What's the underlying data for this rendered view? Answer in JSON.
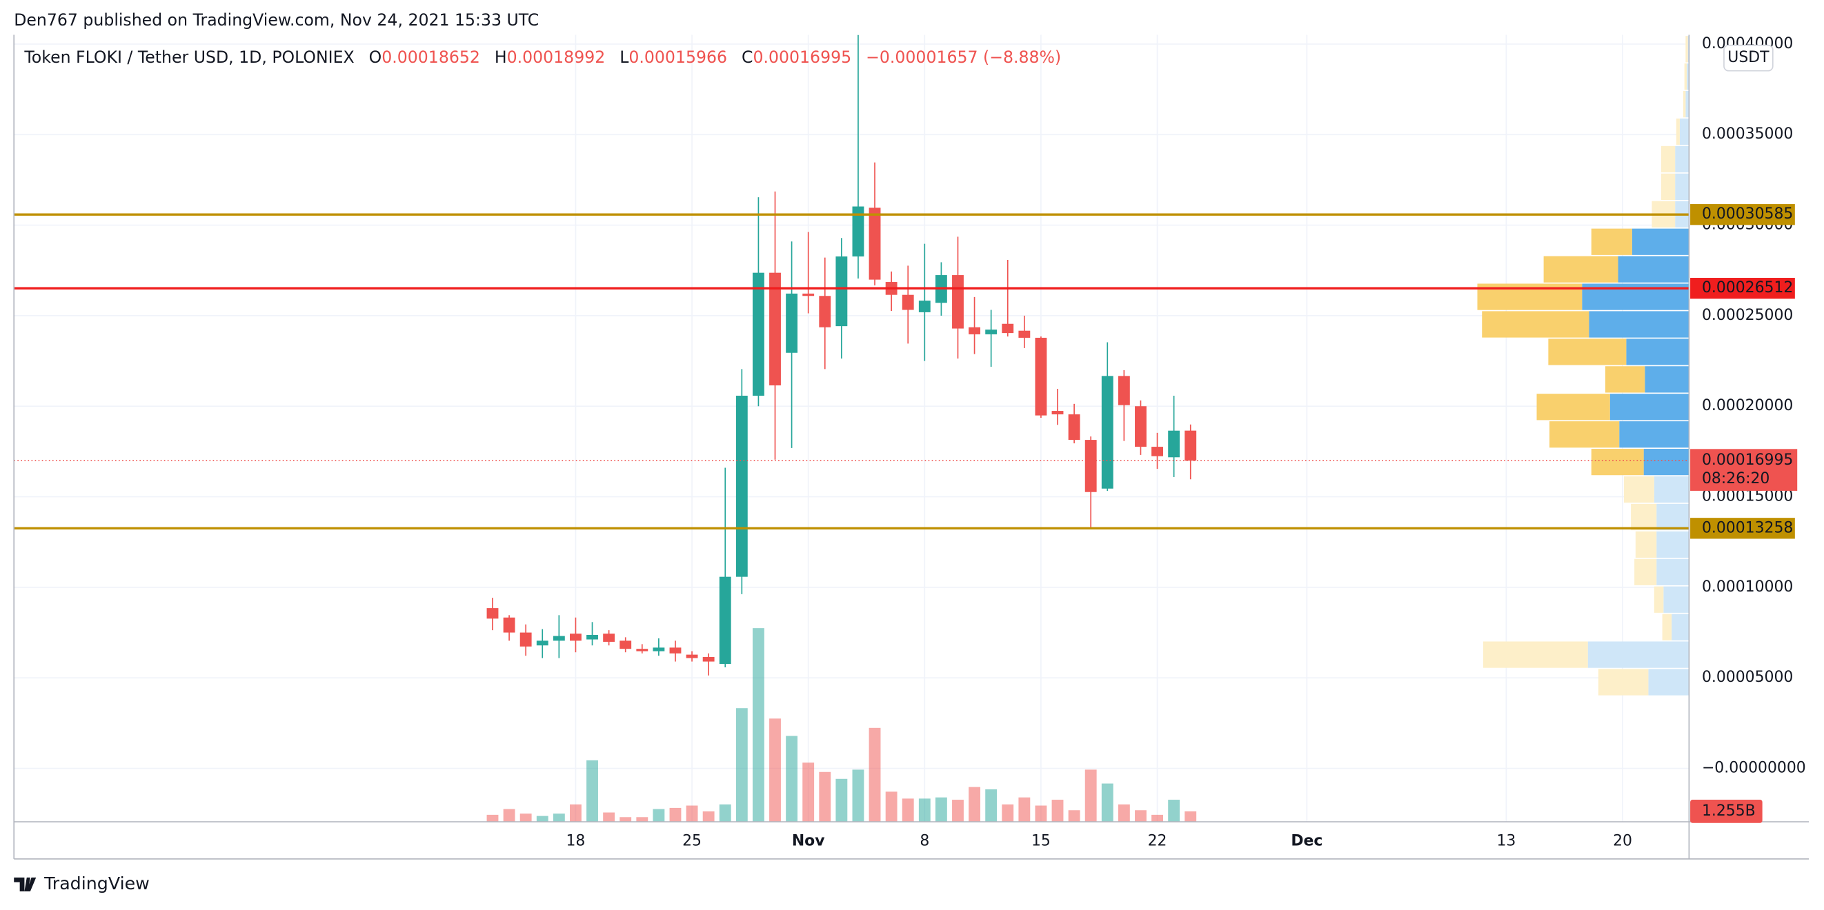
{
  "published": "Den767 published on TradingView.com, Nov 24, 2021 15:33 UTC",
  "chart_data": {
    "type": "candlestick",
    "title": "Token FLOKI / Tether USD, 1D, POLONIEX",
    "header_labels": [
      "O",
      "H",
      "L",
      "C"
    ],
    "change": "−0.00001657 (−8.88%)",
    "currency": "USDT",
    "x": [
      0,
      1,
      2,
      3,
      4,
      5,
      6,
      7,
      8,
      9,
      10,
      11,
      12,
      13,
      14,
      15,
      16,
      17,
      18,
      19,
      20,
      21,
      22,
      23,
      24,
      25,
      26,
      27,
      28,
      29,
      30,
      31,
      32,
      33,
      34,
      35,
      36,
      37,
      38,
      39,
      40,
      41,
      42
    ],
    "open": [
      8.85e-05,
      8.33e-05,
      7.5e-05,
      6.79e-05,
      7.05e-05,
      7.44e-05,
      7.12e-05,
      7.44e-05,
      7.05e-05,
      6.6e-05,
      6.47e-05,
      6.67e-05,
      6.28e-05,
      6.15e-05,
      5.77e-05,
      0.0001058,
      0.0002058,
      0.0002737,
      0.0002295,
      0.0002622,
      0.0002609,
      0.0002442,
      0.0002827,
      0.0003096,
      0.0002686,
      0.0002615,
      0.0002519,
      0.0002571,
      0.0002724,
      0.0002436,
      0.0002397,
      0.0002455,
      0.0002417,
      0.0002378,
      0.0001974,
      0.0001955,
      0.0001814,
      0.0001545,
      0.0002167,
      0.0002,
      0.0001776,
      0.0001718,
      0.00018652
    ],
    "high": [
      9.42e-05,
      8.46e-05,
      7.95e-05,
      7.69e-05,
      8.46e-05,
      8.33e-05,
      8.08e-05,
      7.63e-05,
      7.24e-05,
      6.86e-05,
      7.18e-05,
      7.05e-05,
      6.47e-05,
      6.35e-05,
      0.000166,
      0.0002205,
      0.0003154,
      0.0003186,
      0.000291,
      0.0002962,
      0.0002821,
      0.0002929,
      0.000405,
      0.0003346,
      0.0002744,
      0.0002776,
      0.0002897,
      0.0002795,
      0.0002936,
      0.0002603,
      0.0002532,
      0.0002808,
      0.00025,
      0.0002385,
      0.0002096,
      0.0002013,
      0.0001833,
      0.0002353,
      0.0002199,
      0.0002032,
      0.0001853,
      0.0002058,
      0.00018992
    ],
    "low": [
      7.63e-05,
      7.05e-05,
      6.22e-05,
      6.09e-05,
      6.09e-05,
      6.41e-05,
      6.79e-05,
      6.79e-05,
      6.41e-05,
      6.35e-05,
      6.22e-05,
      5.9e-05,
      5.9e-05,
      5.13e-05,
      5.58e-05,
      9.62e-05,
      0.0002,
      0.0001705,
      0.0001769,
      0.0002513,
      0.0002205,
      0.0002263,
      0.0002705,
      0.0002667,
      0.0002526,
      0.0002346,
      0.000225,
      0.00025,
      0.0002263,
      0.0002288,
      0.0002218,
      0.0002385,
      0.0002321,
      0.0001936,
      0.0001897,
      0.0001795,
      0.0001327,
      0.0001532,
      0.0001808,
      0.0001731,
      0.0001654,
      0.0001609,
      0.00015966
    ],
    "close": [
      8.27e-05,
      7.5e-05,
      6.73e-05,
      7.05e-05,
      7.31e-05,
      7.05e-05,
      7.37e-05,
      6.99e-05,
      6.6e-05,
      6.47e-05,
      6.67e-05,
      6.35e-05,
      6.09e-05,
      5.9e-05,
      0.0001058,
      0.0002058,
      0.0002737,
      0.0002115,
      0.0002622,
      0.0002609,
      0.0002436,
      0.0002827,
      0.0003103,
      0.0002699,
      0.0002615,
      0.0002532,
      0.0002583,
      0.0002724,
      0.0002429,
      0.0002397,
      0.0002423,
      0.0002404,
      0.0002378,
      0.0001949,
      0.0001955,
      0.0001814,
      0.0001526,
      0.0002167,
      0.0002006,
      0.0001776,
      0.0001724,
      0.0001865,
      0.00016995
    ],
    "volume": {
      "values": [
        840000000,
        1530000000,
        980000000,
        700000000,
        980000000,
        2090000000,
        7390000000,
        1120000000,
        560000000,
        560000000,
        1530000000,
        1670000000,
        1950000000,
        1250000000,
        2090000000,
        13660000000,
        23280000000,
        12410000000,
        10320000000,
        7110000000,
        5990000000,
        5160000000,
        6270000000,
        11290000000,
        3620000000,
        2790000000,
        2790000000,
        2930000000,
        2650000000,
        4180000000,
        3900000000,
        2090000000,
        2930000000,
        1950000000,
        2650000000,
        1390000000,
        6270000000,
        4600000000,
        2090000000,
        1390000000,
        840000000,
        2650000000,
        1255000000
      ],
      "value_labels": [
        null,
        null,
        null,
        null,
        null,
        null,
        null,
        null,
        null,
        null,
        null,
        null,
        null,
        null,
        null,
        null,
        null,
        null,
        null,
        null,
        null,
        null,
        null,
        null,
        null,
        null,
        null,
        null,
        null,
        null,
        null,
        null,
        null,
        null,
        null,
        null,
        null,
        null,
        null,
        null,
        null,
        null,
        "1.255B"
      ],
      "lim": [
        0,
        30000000000
      ]
    },
    "up_color": "#26a69a",
    "down_color": "#ef5350",
    "xlim": [
      -28.8,
      72
    ],
    "xticks": [
      {
        "value": 5,
        "label": "18"
      },
      {
        "value": 12,
        "label": "25"
      },
      {
        "value": 19,
        "label": "Nov"
      },
      {
        "value": 26,
        "label": "8"
      },
      {
        "value": 33,
        "label": "15"
      },
      {
        "value": 40,
        "label": "22"
      },
      {
        "value": 49,
        "label": "Dec"
      },
      {
        "value": 61,
        "label": "13"
      },
      {
        "value": 68,
        "label": "20"
      }
    ],
    "ylim": [
      -2.95e-05,
      0.0004051
    ],
    "yticks": [
      {
        "value": 0,
        "label": "−0.00000000"
      },
      {
        "value": 5e-05,
        "label": "0.00005000"
      },
      {
        "value": 0.0001,
        "label": "0.00010000"
      },
      {
        "value": 0.00015,
        "label": "0.00015000"
      },
      {
        "value": 0.0002,
        "label": "0.00020000"
      },
      {
        "value": 0.00025,
        "label": "0.00025000"
      },
      {
        "value": 0.0003,
        "label": "0.00030000"
      },
      {
        "value": 0.00035,
        "label": "0.00035000"
      },
      {
        "value": 0.0004,
        "label": "0.00040000"
      }
    ],
    "grid": true,
    "levels": [
      {
        "value": 0.00030585,
        "color": "#bf9000"
      },
      {
        "value": 0.00026512,
        "color": "#f01e1e"
      },
      {
        "value": 0.00013258,
        "color": "#bf9000"
      }
    ],
    "countdown": "08:26:20",
    "volume_profile": {
      "bins": [
        4e-05,
        5.52e-05,
        7.04e-05,
        8.56e-05,
        0.0001008,
        0.000116,
        0.0001312,
        0.0001464,
        0.0001616,
        0.0001768,
        0.000192,
        0.0002072,
        0.0002224,
        0.0002376,
        0.0002528,
        0.000268,
        0.0002832,
        0.0002984,
        0.0003136,
        0.0003288,
        0.000344,
        0.0003592,
        0.0003744,
        0.0003896,
        0.0004048
      ],
      "up": [
        35,
        87,
        15,
        22,
        28,
        28,
        28,
        30,
        39,
        60,
        68,
        38,
        54,
        86,
        92,
        61,
        49,
        12,
        12,
        12,
        8,
        3,
        2,
        1
      ],
      "down": [
        43,
        90,
        8,
        8,
        19,
        18,
        22,
        26,
        45,
        60,
        63,
        34,
        67,
        92,
        90,
        64,
        35,
        20,
        12,
        12,
        3,
        2,
        2,
        2
      ],
      "xlim": [
        0,
        200
      ],
      "value_area": [
        0.0001616,
        0.0002984
      ],
      "colors": {
        "up": "#5eaeea",
        "down": "#f9d06d",
        "up_light": "#cfe6f8",
        "down_light": "#fdefc9"
      }
    }
  },
  "footer": {
    "brand": "TradingView"
  }
}
